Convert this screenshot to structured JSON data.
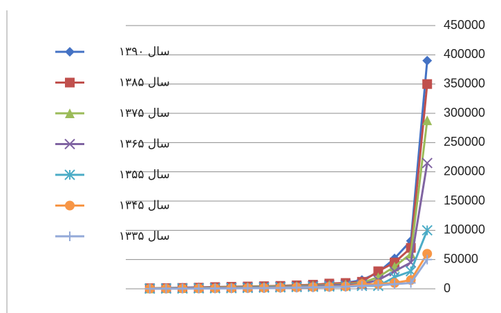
{
  "chart_data": {
    "type": "line",
    "categories": [
      null,
      null,
      null,
      null,
      null,
      null,
      null,
      null,
      null,
      null,
      null,
      null,
      null,
      null,
      null,
      null,
      null,
      null
    ],
    "ylim": [
      0,
      450000
    ],
    "yticks": [
      0,
      50000,
      100000,
      150000,
      200000,
      250000,
      300000,
      350000,
      400000,
      450000
    ],
    "grid": true,
    "series": [
      {
        "name": "سال ۱۳۹۰",
        "color": "#4472c4",
        "marker": "diamond",
        "values": [
          1000,
          1500,
          2000,
          2500,
          3000,
          3500,
          4000,
          4500,
          5000,
          6000,
          7000,
          8000,
          10000,
          15000,
          28000,
          52000,
          82000,
          390000
        ]
      },
      {
        "name": "سال ۱۳۸۵",
        "color": "#c0504d",
        "marker": "square",
        "values": [
          1000,
          1200,
          1500,
          2000,
          3000,
          3500,
          4000,
          4500,
          5000,
          6000,
          7000,
          9000,
          10000,
          12000,
          30000,
          45000,
          70000,
          350000
        ]
      },
      {
        "name": "سال ۱۳۷۵",
        "color": "#9bbb59",
        "marker": "triangle",
        "values": [
          800,
          1000,
          1200,
          1500,
          2000,
          3000,
          3500,
          4000,
          4500,
          5000,
          6000,
          7000,
          8000,
          10000,
          20000,
          38000,
          60000,
          288000
        ]
      },
      {
        "name": "سال ۱۳۶۵",
        "color": "#8064a2",
        "marker": "x",
        "values": [
          600,
          800,
          1000,
          1200,
          1500,
          2000,
          2500,
          3000,
          3500,
          4000,
          5000,
          6000,
          7000,
          8000,
          15000,
          30000,
          45000,
          215000
        ]
      },
      {
        "name": "سال ۱۳۵۵",
        "color": "#4bacc6",
        "marker": "star",
        "values": [
          400,
          500,
          600,
          800,
          1000,
          1200,
          1500,
          2000,
          2500,
          3000,
          3500,
          4000,
          4500,
          5000,
          5000,
          20000,
          30000,
          100000
        ]
      },
      {
        "name": "سال ۱۳۴۵",
        "color": "#f79646",
        "marker": "circle",
        "values": [
          300,
          400,
          500,
          600,
          800,
          1000,
          1200,
          1500,
          2000,
          2500,
          3000,
          3500,
          4000,
          8000,
          8000,
          10000,
          15000,
          60000
        ]
      },
      {
        "name": "سال ۱۳۳۵",
        "color": "#93a9d8",
        "marker": "plus",
        "values": [
          200,
          300,
          400,
          500,
          600,
          800,
          1000,
          1200,
          1500,
          2000,
          2500,
          3000,
          3500,
          5000,
          6000,
          8000,
          10000,
          50000
        ]
      }
    ]
  }
}
